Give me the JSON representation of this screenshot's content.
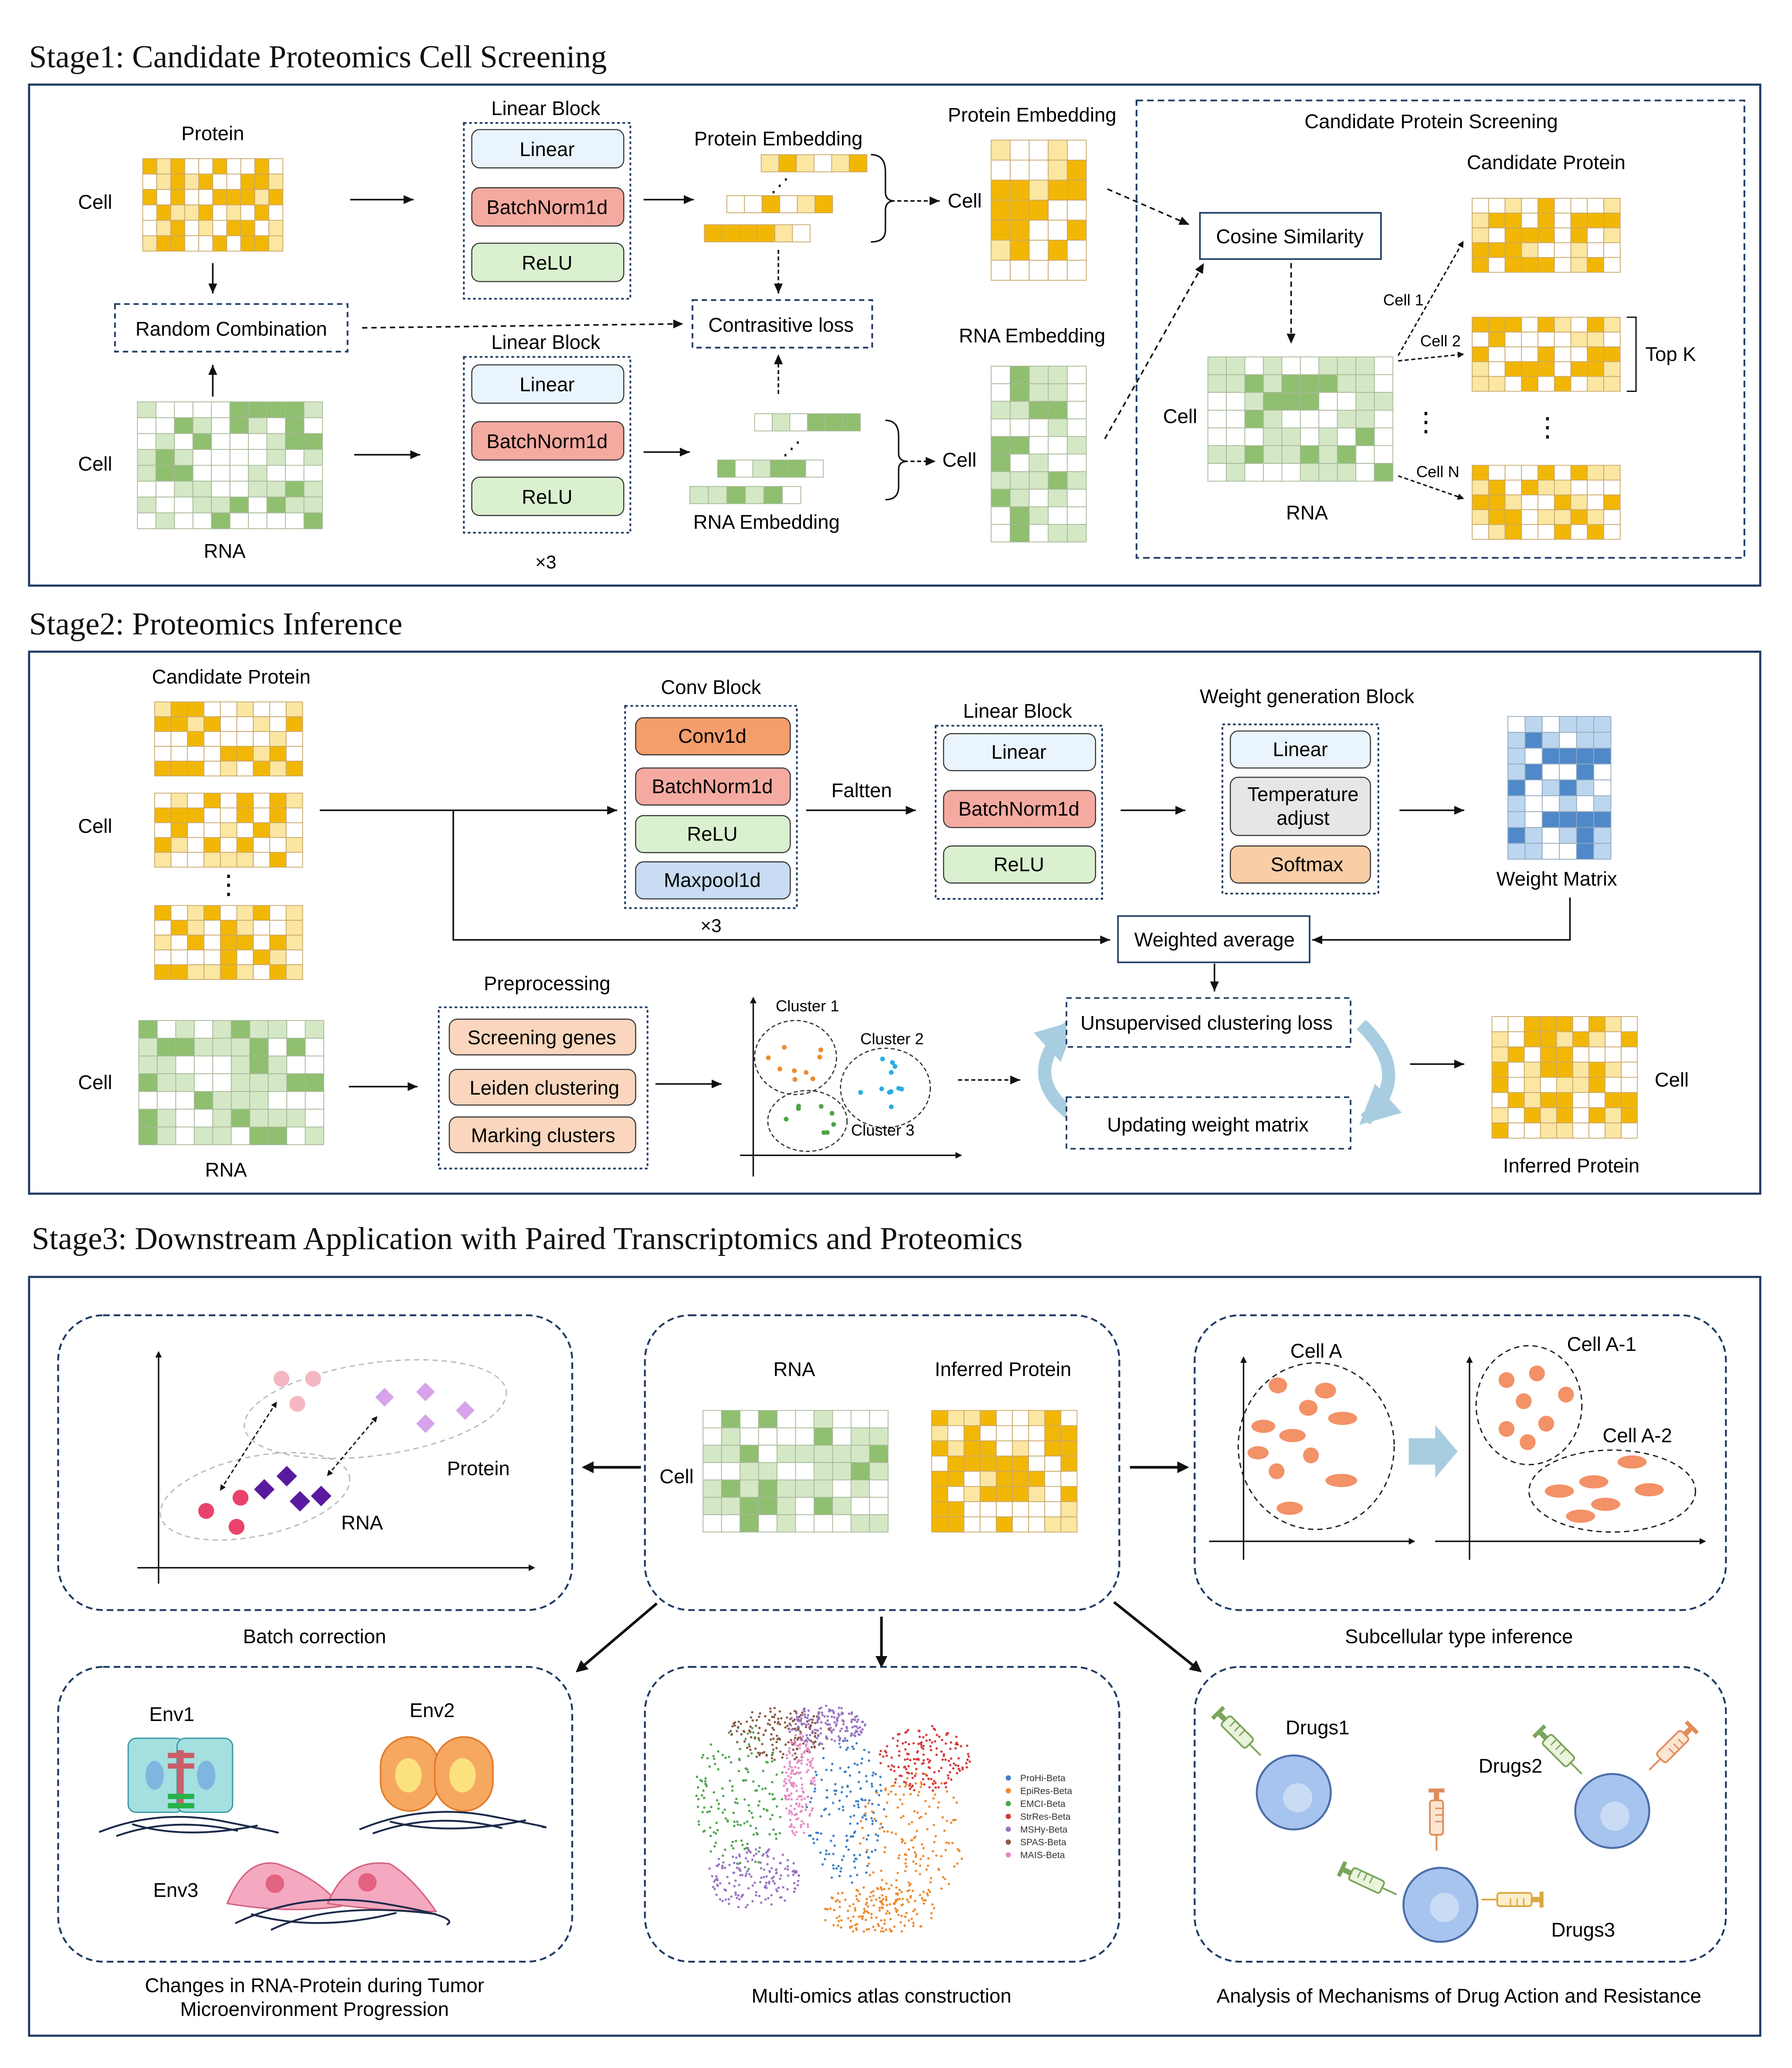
{
  "colors": {
    "frame": "#1f3b63",
    "protein": "#f2b705",
    "protein_light": "#fbe6a2",
    "rna": "#8fbf6f",
    "rna_light": "#d5e8c6",
    "weight": "#4f89c9",
    "weight_light": "#bcd6ef",
    "linear": "#eaf4fc",
    "batchnorm": "#f4aaa0",
    "relu": "#daf0cf",
    "conv": "#f59d6b",
    "maxpool": "#c8dcf3",
    "softmax": "#f9cda6",
    "temperature": "#e6e6e6",
    "preproc": "#f9d6bd",
    "cycle": "#a9cde0"
  },
  "stage1": {
    "title": "Stage1: Candidate Proteomics Cell Screening",
    "protein_title": "Protein",
    "cell_protein": "Cell",
    "random_combination": "Random Combination",
    "cell_rna": "Cell",
    "rna_label": "RNA",
    "linear_block_top": "Linear Block",
    "linear_block_bottom": "Linear Block",
    "linear": "Linear",
    "batchnorm": "BatchNorm1d",
    "relu": "ReLU",
    "times3": "×3",
    "protein_embedding_vec": "Protein Embedding",
    "rna_embedding_vec": "RNA Embedding",
    "contrastive_loss": "Contrasitive loss",
    "dots": "⋰",
    "cell_emb_top": "Cell",
    "cell_emb_bottom": "Cell",
    "protein_embedding_mat": "Protein Embedding",
    "rna_embedding_mat": "RNA Embedding",
    "screening_title": "Candidate Protein Screening",
    "candidate_protein": "Candidate Protein",
    "cosine_similarity": "Cosine Similarity",
    "cell_rna2": "Cell",
    "rna2": "RNA",
    "cell1": "Cell 1",
    "cell2": "Cell 2",
    "celln": "Cell N",
    "vdots": "⋮",
    "topk": "Top K"
  },
  "stage2": {
    "title": "Stage2: Proteomics Inference",
    "candidate_protein": "Candidate Protein",
    "cell_top": "Cell",
    "cell_rna": "Cell",
    "rna_label": "RNA",
    "vdots": "⋮",
    "conv_block": "Conv Block",
    "conv1d": "Conv1d",
    "batchnorm": "BatchNorm1d",
    "relu": "ReLU",
    "maxpool": "Maxpool1d",
    "times3": "×3",
    "flatten": "Faltten",
    "linear_block": "Linear Block",
    "linear": "Linear",
    "weight_gen_block": "Weight generation Block",
    "wg_linear": "Linear",
    "temperature": "Temperature adjust",
    "softmax": "Softmax",
    "weight_matrix": "Weight Matrix",
    "weighted_average": "Weighted average",
    "preprocessing": "Preprocessing",
    "screening_genes": "Screening genes",
    "leiden": "Leiden clustering",
    "marking": "Marking clusters",
    "cluster1": "Cluster 1",
    "cluster2": "Cluster 2",
    "cluster3": "Cluster 3",
    "unsup_loss": "Unsupervised clustering loss",
    "updating": "Updating weight matrix",
    "cell_out": "Cell",
    "inferred_protein": "Inferred Protein"
  },
  "stage3": {
    "title": "Stage3:  Downstream Application with Paired Transcriptomics and Proteomics",
    "rna": "RNA",
    "inferred_protein": "Inferred Protein",
    "cell": "Cell",
    "protein": "Protein",
    "rna_cluster": "RNA",
    "batch_correction": "Batch correction",
    "cell_a": "Cell A",
    "cell_a1": "Cell A-1",
    "cell_a2": "Cell A-2",
    "subcellular": "Subcellular type inference",
    "env1": "Env1",
    "env2": "Env2",
    "env3": "Env3",
    "tumor_line1": "Changes in RNA-Protein during Tumor",
    "tumor_line2": "Microenvironment Progression",
    "atlas": "Multi-omics atlas construction",
    "legend": [
      "ProHi-Beta",
      "EpiRes-Beta",
      "EMCI-Beta",
      "StrRes-Beta",
      "MSHy-Beta",
      "SPAS-Beta",
      "MAIS-Beta"
    ],
    "legend_colors": [
      "#3d7fc4",
      "#f08a2c",
      "#4ca54a",
      "#d63a3a",
      "#9a74c4",
      "#8a5a44",
      "#e58ac4"
    ],
    "drugs1": "Drugs1",
    "drugs2": "Drugs2",
    "drugs3": "Drugs3",
    "drug_mech": "Analysis of Mechanisms of Drug Action and Resistance"
  }
}
